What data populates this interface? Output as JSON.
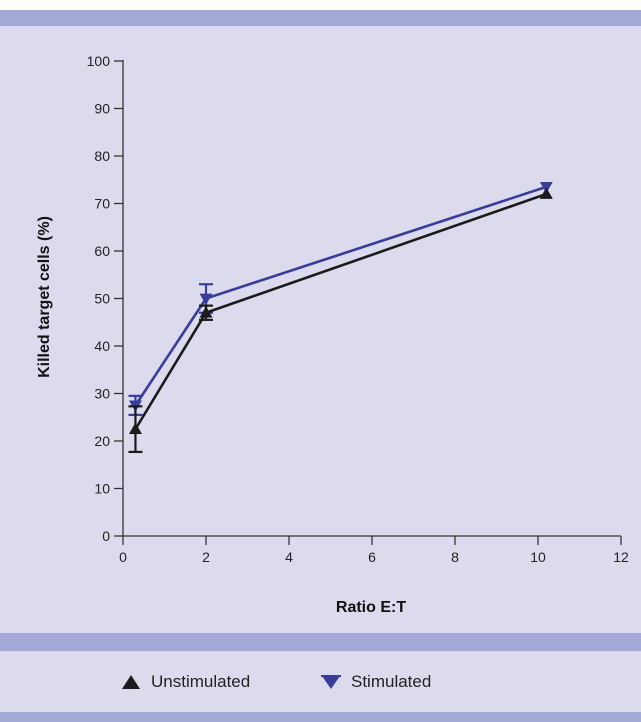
{
  "colors": {
    "band": "#a4a8d5",
    "panel": "#dcdbed",
    "axis": "#333333",
    "unstimulated": "#1b1b1b",
    "stimulated": "#3a3c9c"
  },
  "chart_data": {
    "type": "line",
    "xlabel": "Ratio E:T",
    "ylabel": "Killed target cells (%)",
    "xlim": [
      0,
      12
    ],
    "ylim": [
      0,
      100
    ],
    "xticks": [
      0,
      2,
      4,
      6,
      8,
      10,
      12
    ],
    "yticks": [
      0,
      10,
      20,
      30,
      40,
      50,
      60,
      70,
      80,
      90,
      100
    ],
    "grid": false,
    "legend_position": "bottom",
    "series": [
      {
        "name": "Unstimulated",
        "marker": "triangle-up",
        "x": [
          0.3,
          2,
          10.2
        ],
        "y": [
          22.5,
          47,
          72
        ],
        "error": [
          4.8,
          1.5,
          0
        ]
      },
      {
        "name": "Stimulated",
        "marker": "triangle-down",
        "x": [
          0.3,
          2,
          10.2
        ],
        "y": [
          27.5,
          50,
          73.5
        ],
        "error": [
          2,
          3,
          0
        ]
      }
    ]
  }
}
